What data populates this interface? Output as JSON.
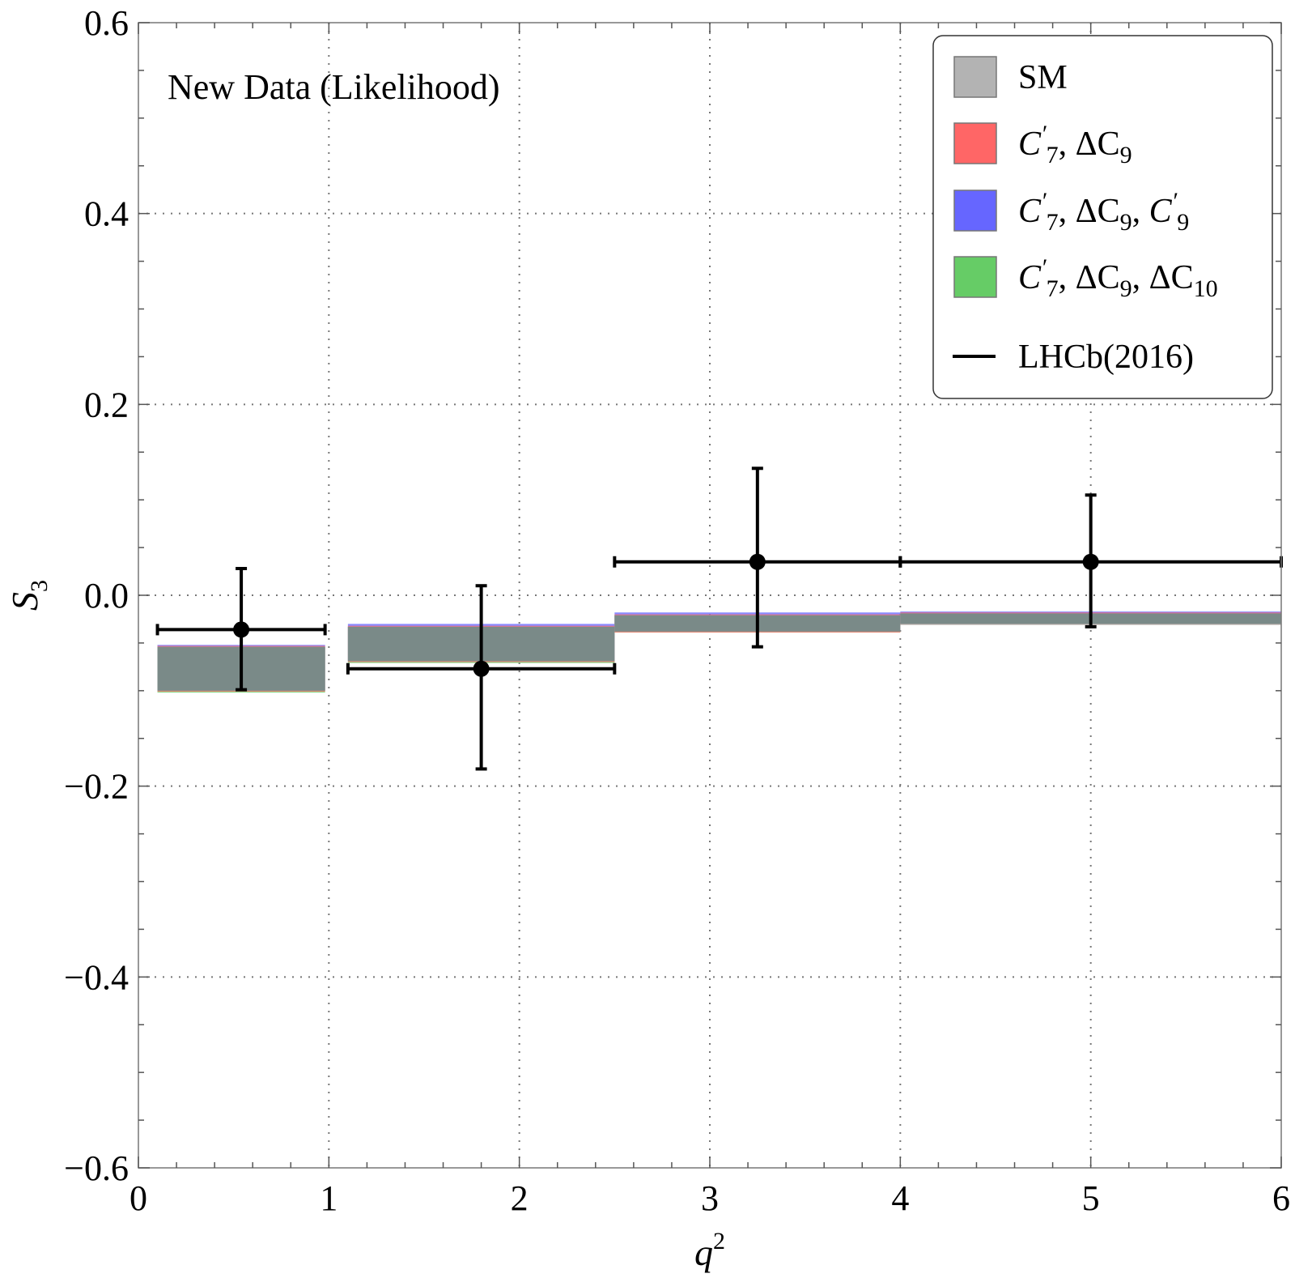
{
  "chart_data": {
    "type": "bar",
    "annotation": "New Data (Likelihood)",
    "xlabel": "q",
    "xlabel_sup": "2",
    "ylabel": "S",
    "ylabel_sub": "3",
    "xlim": [
      0,
      6
    ],
    "ylim": [
      -0.6,
      0.6
    ],
    "xticks": [
      0,
      1,
      2,
      3,
      4,
      5,
      6
    ],
    "xtick_labels": [
      "0",
      "1",
      "2",
      "3",
      "4",
      "5",
      "6"
    ],
    "yticks": [
      -0.6,
      -0.4,
      -0.2,
      0.0,
      0.2,
      0.4,
      0.6
    ],
    "ytick_labels": [
      "−0.6",
      "−0.4",
      "−0.2",
      "0.0",
      "0.2",
      "0.4",
      "0.6"
    ],
    "grid": true,
    "legend_position": "top-right",
    "legend": [
      {
        "key": "sm",
        "parts": [
          {
            "t": "SM"
          }
        ]
      },
      {
        "key": "c7_dc9",
        "parts": [
          {
            "t": "C",
            "i": true
          },
          {
            "t": "′",
            "i": true,
            "sup": true
          },
          {
            "t": "7",
            "sub": true
          },
          {
            "t": ", ΔC"
          },
          {
            "t": "9",
            "sub": true
          }
        ]
      },
      {
        "key": "c7_dc9_c9p",
        "parts": [
          {
            "t": "C",
            "i": true
          },
          {
            "t": "′",
            "i": true,
            "sup": true
          },
          {
            "t": "7",
            "sub": true
          },
          {
            "t": ", ΔC"
          },
          {
            "t": "9",
            "sub": true
          },
          {
            "t": ", "
          },
          {
            "t": "C",
            "i": true
          },
          {
            "t": "′",
            "i": true,
            "sup": true
          },
          {
            "t": "9",
            "sub": true
          }
        ]
      },
      {
        "key": "c7_dc9_dc10",
        "parts": [
          {
            "t": "C",
            "i": true
          },
          {
            "t": "′",
            "i": true,
            "sup": true
          },
          {
            "t": "7",
            "sub": true
          },
          {
            "t": ", ΔC"
          },
          {
            "t": "9",
            "sub": true
          },
          {
            "t": ", ΔC"
          },
          {
            "t": "10",
            "sub": true
          }
        ]
      },
      {
        "key": "lhcb",
        "parts": [
          {
            "t": "LHCb(2016)"
          }
        ]
      }
    ],
    "colors": {
      "sm": "#b3b3b3",
      "c7_dc9": "#ff6666",
      "c7_dc9_c9p": "#6666ff",
      "c7_dc9_dc10": "#66cc66",
      "overlap": "#7a8a88",
      "data": "#000000"
    },
    "bins": [
      {
        "x0": 0.1,
        "x1": 0.98
      },
      {
        "x0": 1.1,
        "x1": 2.5
      },
      {
        "x0": 2.5,
        "x1": 4.0
      },
      {
        "x0": 4.0,
        "x1": 6.0
      }
    ],
    "bands": [
      {
        "sm": [
          -0.1,
          -0.054
        ],
        "c7_dc9": [
          -0.101,
          -0.053
        ],
        "c7_dc9_c9p": [
          -0.1,
          -0.052
        ],
        "c7_dc9_dc10": [
          -0.102,
          -0.054
        ]
      },
      {
        "sm": [
          -0.069,
          -0.033
        ],
        "c7_dc9": [
          -0.07,
          -0.032
        ],
        "c7_dc9_c9p": [
          -0.069,
          -0.03
        ],
        "c7_dc9_dc10": [
          -0.071,
          -0.033
        ]
      },
      {
        "sm": [
          -0.038,
          -0.021
        ],
        "c7_dc9": [
          -0.039,
          -0.02
        ],
        "c7_dc9_c9p": [
          -0.038,
          -0.018
        ],
        "c7_dc9_dc10": [
          -0.039,
          -0.021
        ]
      },
      {
        "sm": [
          -0.031,
          -0.019
        ],
        "c7_dc9": [
          -0.031,
          -0.018
        ],
        "c7_dc9_c9p": [
          -0.03,
          -0.017
        ],
        "c7_dc9_dc10": [
          -0.031,
          -0.019
        ]
      }
    ],
    "data_points": [
      {
        "x": 0.54,
        "xlo": 0.1,
        "xhi": 0.98,
        "y": -0.036,
        "ylo": -0.099,
        "yhi": 0.028
      },
      {
        "x": 1.8,
        "xlo": 1.1,
        "xhi": 2.5,
        "y": -0.077,
        "ylo": -0.182,
        "yhi": 0.01
      },
      {
        "x": 3.25,
        "xlo": 2.5,
        "xhi": 4.0,
        "y": 0.035,
        "ylo": -0.054,
        "yhi": 0.133
      },
      {
        "x": 5.0,
        "xlo": 4.0,
        "xhi": 6.0,
        "y": 0.035,
        "ylo": -0.033,
        "yhi": 0.105
      }
    ]
  }
}
